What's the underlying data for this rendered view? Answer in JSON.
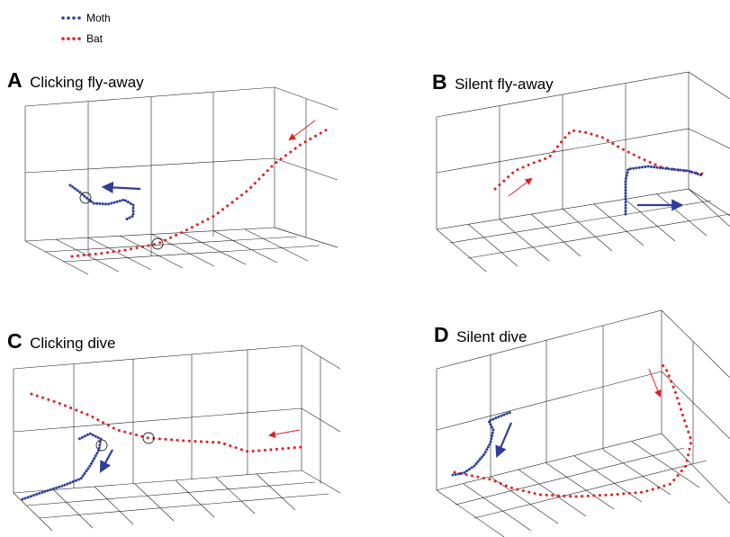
{
  "legend": [
    {
      "label": "Moth",
      "color": "#2e3d98"
    },
    {
      "label": "Bat",
      "color": "#e31e24"
    }
  ],
  "panels": [
    {
      "letter": "A",
      "title": "Clicking fly-away"
    },
    {
      "letter": "B",
      "title": "Silent fly-away"
    },
    {
      "letter": "C",
      "title": "Clicking dive"
    },
    {
      "letter": "D",
      "title": "Silent dive"
    }
  ],
  "colors": {
    "moth": "#2e3d98",
    "bat": "#e31e24",
    "grid": "#231f20"
  }
}
